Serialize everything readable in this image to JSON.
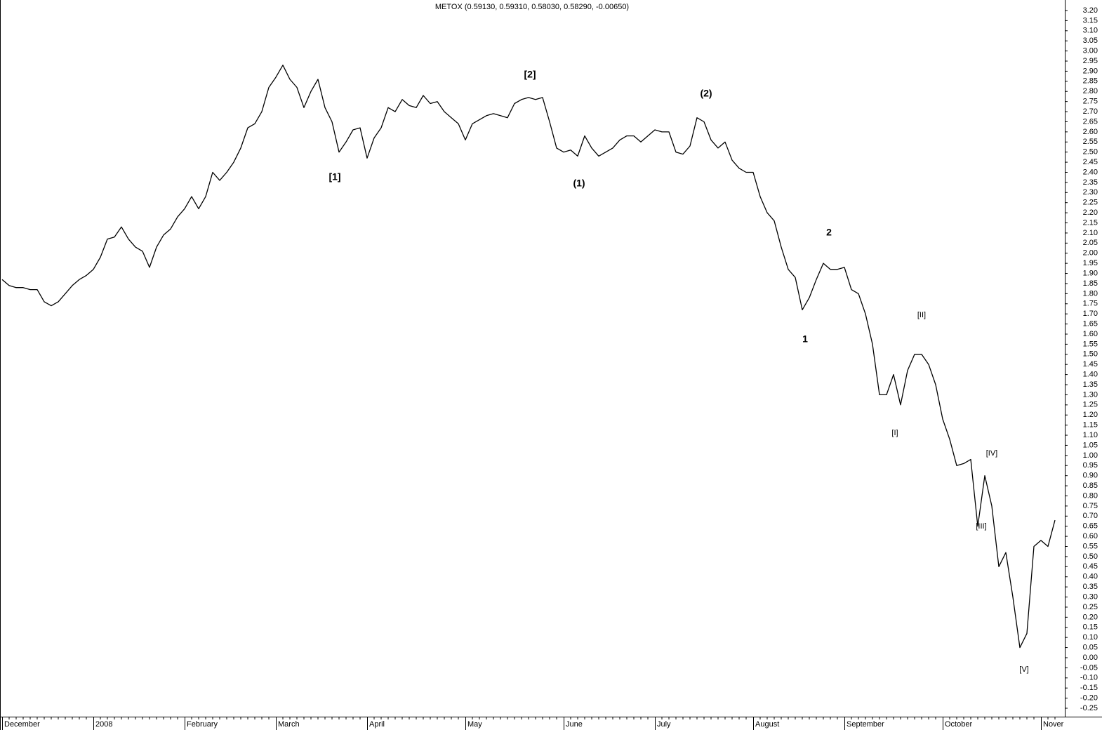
{
  "chart_data": {
    "type": "line",
    "title": "METOX (0.59130, 0.59310, 0.58030, 0.58290, -0.00650)",
    "color": "#000000",
    "categories": [
      "December",
      null,
      null,
      null,
      null,
      null,
      null,
      null,
      null,
      null,
      null,
      null,
      null,
      "2008",
      null,
      null,
      null,
      null,
      null,
      null,
      null,
      null,
      null,
      null,
      null,
      null,
      "February",
      null,
      null,
      null,
      null,
      null,
      null,
      null,
      null,
      null,
      null,
      null,
      null,
      "March",
      null,
      null,
      null,
      null,
      null,
      null,
      null,
      null,
      null,
      null,
      null,
      null,
      "April",
      null,
      null,
      null,
      null,
      null,
      null,
      null,
      null,
      null,
      null,
      null,
      null,
      null,
      "May",
      null,
      null,
      null,
      null,
      null,
      null,
      null,
      null,
      null,
      null,
      null,
      null,
      null,
      "June",
      null,
      null,
      null,
      null,
      null,
      null,
      null,
      null,
      null,
      null,
      null,
      null,
      "July",
      null,
      null,
      null,
      null,
      null,
      null,
      null,
      null,
      null,
      null,
      null,
      null,
      null,
      "August",
      null,
      null,
      null,
      null,
      null,
      null,
      null,
      null,
      null,
      null,
      null,
      null,
      "September",
      null,
      null,
      null,
      null,
      null,
      null,
      null,
      null,
      null,
      null,
      null,
      null,
      null,
      "October",
      null,
      null,
      null,
      null,
      null,
      null,
      null,
      null,
      null,
      null,
      null,
      null,
      null,
      "Nover",
      null,
      null
    ],
    "values": [
      1.87,
      1.84,
      1.83,
      1.83,
      1.82,
      1.82,
      1.76,
      1.74,
      1.76,
      1.8,
      1.84,
      1.87,
      1.89,
      1.92,
      1.98,
      2.07,
      2.08,
      2.13,
      2.07,
      2.03,
      2.01,
      1.93,
      2.03,
      2.09,
      2.12,
      2.18,
      2.22,
      2.28,
      2.22,
      2.28,
      2.4,
      2.36,
      2.4,
      2.45,
      2.52,
      2.62,
      2.64,
      2.7,
      2.82,
      2.87,
      2.93,
      2.86,
      2.82,
      2.72,
      2.8,
      2.86,
      2.72,
      2.65,
      2.5,
      2.55,
      2.61,
      2.62,
      2.47,
      2.57,
      2.62,
      2.72,
      2.7,
      2.76,
      2.73,
      2.72,
      2.78,
      2.74,
      2.75,
      2.7,
      2.67,
      2.64,
      2.56,
      2.64,
      2.66,
      2.68,
      2.69,
      2.68,
      2.67,
      2.74,
      2.76,
      2.77,
      2.76,
      2.77,
      2.65,
      2.52,
      2.5,
      2.51,
      2.48,
      2.58,
      2.52,
      2.48,
      2.5,
      2.52,
      2.56,
      2.58,
      2.58,
      2.55,
      2.58,
      2.61,
      2.6,
      2.6,
      2.5,
      2.49,
      2.53,
      2.67,
      2.65,
      2.56,
      2.52,
      2.55,
      2.46,
      2.42,
      2.4,
      2.4,
      2.28,
      2.2,
      2.16,
      2.03,
      1.92,
      1.88,
      1.72,
      1.78,
      1.87,
      1.95,
      1.92,
      1.92,
      1.93,
      1.82,
      1.8,
      1.7,
      1.55,
      1.3,
      1.3,
      1.4,
      1.25,
      1.42,
      1.5,
      1.5,
      1.45,
      1.35,
      1.18,
      1.08,
      0.95,
      0.96,
      0.98,
      0.65,
      0.9,
      0.75,
      0.45,
      0.52,
      0.3,
      0.05,
      0.12,
      0.55,
      0.58,
      0.55,
      0.68
    ],
    "ylim": [
      -0.25,
      3.2
    ],
    "yticks": [
      {
        "value": 3.2,
        "label": "3.20"
      },
      {
        "value": 3.15,
        "label": "3.15"
      },
      {
        "value": 3.1,
        "label": "3.10"
      },
      {
        "value": 3.05,
        "label": "3.05"
      },
      {
        "value": 3.0,
        "label": "3.00"
      },
      {
        "value": 2.95,
        "label": "2.95"
      },
      {
        "value": 2.9,
        "label": "2.90"
      },
      {
        "value": 2.85,
        "label": "2.85"
      },
      {
        "value": 2.8,
        "label": "2.80"
      },
      {
        "value": 2.75,
        "label": "2.75"
      },
      {
        "value": 2.7,
        "label": "2.70"
      },
      {
        "value": 2.65,
        "label": "2.65"
      },
      {
        "value": 2.6,
        "label": "2.60"
      },
      {
        "value": 2.55,
        "label": "2.55"
      },
      {
        "value": 2.5,
        "label": "2.50"
      },
      {
        "value": 2.45,
        "label": "2.45"
      },
      {
        "value": 2.4,
        "label": "2.40"
      },
      {
        "value": 2.35,
        "label": "2.35"
      },
      {
        "value": 2.3,
        "label": "2.30"
      },
      {
        "value": 2.25,
        "label": "2.25"
      },
      {
        "value": 2.2,
        "label": "2.20"
      },
      {
        "value": 2.15,
        "label": "2.15"
      },
      {
        "value": 2.1,
        "label": "2.10"
      },
      {
        "value": 2.05,
        "label": "2.05"
      },
      {
        "value": 2.0,
        "label": "2.00"
      },
      {
        "value": 1.95,
        "label": "1.95"
      },
      {
        "value": 1.9,
        "label": "1.90"
      },
      {
        "value": 1.85,
        "label": "1.85"
      },
      {
        "value": 1.8,
        "label": "1.80"
      },
      {
        "value": 1.75,
        "label": "1.75"
      },
      {
        "value": 1.7,
        "label": "1.70"
      },
      {
        "value": 1.65,
        "label": "1.65"
      },
      {
        "value": 1.6,
        "label": "1.60"
      },
      {
        "value": 1.55,
        "label": "1.55"
      },
      {
        "value": 1.5,
        "label": "1.50"
      },
      {
        "value": 1.45,
        "label": "1.45"
      },
      {
        "value": 1.4,
        "label": "1.40"
      },
      {
        "value": 1.35,
        "label": "1.35"
      },
      {
        "value": 1.3,
        "label": "1.30"
      },
      {
        "value": 1.25,
        "label": "1.25"
      },
      {
        "value": 1.2,
        "label": "1.20"
      },
      {
        "value": 1.15,
        "label": "1.15"
      },
      {
        "value": 1.1,
        "label": "1.10"
      },
      {
        "value": 1.05,
        "label": "1.05"
      },
      {
        "value": 1.0,
        "label": "1.00"
      },
      {
        "value": 0.95,
        "label": "0.95"
      },
      {
        "value": 0.9,
        "label": "0.90"
      },
      {
        "value": 0.85,
        "label": "0.85"
      },
      {
        "value": 0.8,
        "label": "0.80"
      },
      {
        "value": 0.75,
        "label": "0.75"
      },
      {
        "value": 0.7,
        "label": "0.70"
      },
      {
        "value": 0.65,
        "label": "0.65"
      },
      {
        "value": 0.6,
        "label": "0.60"
      },
      {
        "value": 0.55,
        "label": "0.55"
      },
      {
        "value": 0.5,
        "label": "0.50"
      },
      {
        "value": 0.45,
        "label": "0.45"
      },
      {
        "value": 0.4,
        "label": "0.40"
      },
      {
        "value": 0.35,
        "label": "0.35"
      },
      {
        "value": 0.3,
        "label": "0.30"
      },
      {
        "value": 0.25,
        "label": "0.25"
      },
      {
        "value": 0.2,
        "label": "0.20"
      },
      {
        "value": 0.15,
        "label": "0.15"
      },
      {
        "value": 0.1,
        "label": "0.10"
      },
      {
        "value": 0.05,
        "label": "0.05"
      },
      {
        "value": 0.0,
        "label": "0.00"
      },
      {
        "value": -0.05,
        "label": "-0.05"
      },
      {
        "value": -0.1,
        "label": "-0.10"
      },
      {
        "value": -0.15,
        "label": "-0.15"
      },
      {
        "value": -0.2,
        "label": "-0.20"
      },
      {
        "value": -0.25,
        "label": "-0.25"
      }
    ],
    "annotations": [
      {
        "text": "[1]",
        "color": "#808000"
      },
      {
        "text": "[2]",
        "color": "#808000"
      },
      {
        "text": "(1)",
        "color": "#000080"
      },
      {
        "text": "(2)",
        "color": "#000080"
      },
      {
        "text": "1",
        "color": "#008000"
      },
      {
        "text": "2",
        "color": "#008000"
      },
      {
        "text": "[I]",
        "color": "#ff0000"
      },
      {
        "text": "[II]",
        "color": "#ff0000"
      },
      {
        "text": "[III]",
        "color": "#ff0000"
      },
      {
        "text": "[IV]",
        "color": "#ff0000"
      },
      {
        "text": "[V]",
        "color": "#ff0000"
      }
    ]
  }
}
